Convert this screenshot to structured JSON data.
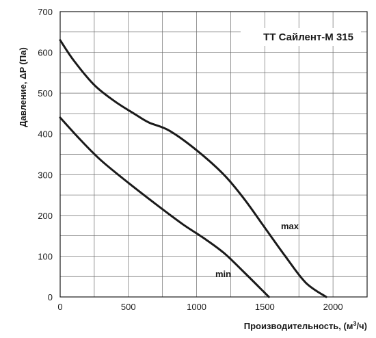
{
  "chart_data": {
    "type": "line",
    "title": "ТТ Сайлент-М 315",
    "ylabel": "Давление, ΔP (Па)",
    "xlabel_main": "Производительность, (м",
    "xlabel_sup": "3",
    "xlabel_tail": "/ч)",
    "xlim": [
      0,
      2250
    ],
    "ylim": [
      0,
      700
    ],
    "x_ticks": [
      "0",
      "500",
      "1000",
      "1500",
      "2000"
    ],
    "y_ticks": [
      "0",
      "100",
      "200",
      "300",
      "400",
      "500",
      "600",
      "700"
    ],
    "grid": true,
    "series": [
      {
        "name": "max",
        "x": [
          0,
          100,
          250,
          400,
          550,
          650,
          800,
          1000,
          1200,
          1350,
          1500,
          1650,
          1800,
          1950
        ],
        "y": [
          630,
          580,
          520,
          480,
          448,
          428,
          408,
          360,
          300,
          240,
          170,
          100,
          35,
          0
        ]
      },
      {
        "name": "min",
        "x": [
          0,
          150,
          300,
          500,
          700,
          900,
          1050,
          1200,
          1350,
          1530
        ],
        "y": [
          440,
          385,
          335,
          280,
          228,
          178,
          145,
          108,
          60,
          0
        ]
      }
    ],
    "colors": {
      "curve": "#1a1a1a",
      "grid": "#6b6b6b",
      "background": "#ffffff"
    }
  }
}
